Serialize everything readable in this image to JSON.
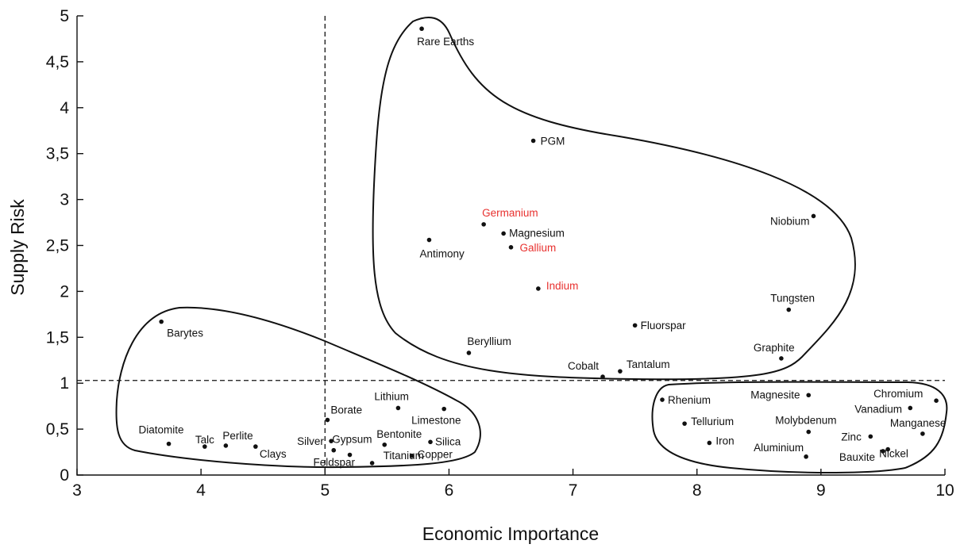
{
  "chart_data": {
    "type": "scatter",
    "title": "",
    "xlabel": "Economic Importance",
    "ylabel": "Supply Risk",
    "xlim": [
      3,
      10
    ],
    "ylim": [
      0,
      5
    ],
    "x_ticks": [
      3,
      4,
      5,
      6,
      7,
      8,
      9,
      10
    ],
    "x_tick_labels": [
      "3",
      "4",
      "5",
      "6",
      "7",
      "8",
      "9",
      "10"
    ],
    "y_ticks": [
      0,
      0.5,
      1,
      1.5,
      2,
      2.5,
      3,
      3.5,
      4,
      4.5,
      5
    ],
    "y_tick_labels": [
      "0",
      "0,5",
      "1",
      "1,5",
      "2",
      "2,5",
      "3",
      "3,5",
      "4",
      "4,5",
      "5"
    ],
    "grid": false,
    "reference_lines": [
      {
        "orientation": "vertical",
        "x": 5,
        "style": "dashed"
      },
      {
        "orientation": "horizontal",
        "y": 1.03,
        "style": "dashed"
      }
    ],
    "colors": {
      "default_label": "#111111",
      "highlight_label": "#e8312f"
    },
    "points": [
      {
        "name": "Rare Earths",
        "x": 5.78,
        "y": 4.86,
        "highlight": false
      },
      {
        "name": "PGM",
        "x": 6.68,
        "y": 3.64,
        "highlight": false
      },
      {
        "name": "Germanium",
        "x": 6.28,
        "y": 2.73,
        "highlight": true
      },
      {
        "name": "Magnesium",
        "x": 6.44,
        "y": 2.63,
        "highlight": false
      },
      {
        "name": "Antimony",
        "x": 5.84,
        "y": 2.56,
        "highlight": false
      },
      {
        "name": "Gallium",
        "x": 6.5,
        "y": 2.48,
        "highlight": true
      },
      {
        "name": "Indium",
        "x": 6.72,
        "y": 2.03,
        "highlight": true
      },
      {
        "name": "Niobium",
        "x": 8.94,
        "y": 2.82,
        "highlight": false
      },
      {
        "name": "Tungsten",
        "x": 8.74,
        "y": 1.8,
        "highlight": false
      },
      {
        "name": "Fluorspar",
        "x": 7.5,
        "y": 1.63,
        "highlight": false
      },
      {
        "name": "Beryllium",
        "x": 6.16,
        "y": 1.33,
        "highlight": false
      },
      {
        "name": "Graphite",
        "x": 8.68,
        "y": 1.27,
        "highlight": false
      },
      {
        "name": "Cobalt",
        "x": 7.24,
        "y": 1.07,
        "highlight": false
      },
      {
        "name": "Tantalum",
        "x": 7.38,
        "y": 1.13,
        "highlight": false
      },
      {
        "name": "Barytes",
        "x": 3.68,
        "y": 1.67,
        "highlight": false
      },
      {
        "name": "Diatomite",
        "x": 3.74,
        "y": 0.34,
        "highlight": false
      },
      {
        "name": "Talc",
        "x": 4.03,
        "y": 0.31,
        "highlight": false
      },
      {
        "name": "Perlite",
        "x": 4.2,
        "y": 0.32,
        "highlight": false
      },
      {
        "name": "Clays",
        "x": 4.44,
        "y": 0.31,
        "highlight": false
      },
      {
        "name": "Borate",
        "x": 5.02,
        "y": 0.6,
        "highlight": false
      },
      {
        "name": "Silver",
        "x": 5.05,
        "y": 0.37,
        "highlight": false
      },
      {
        "name": "Gypsum",
        "x": 5.07,
        "y": 0.27,
        "highlight": false
      },
      {
        "name": "Feldspar",
        "x": 5.2,
        "y": 0.22,
        "highlight": false
      },
      {
        "name": "Titanium",
        "x": 5.38,
        "y": 0.13,
        "highlight": false
      },
      {
        "name": "Lithium",
        "x": 5.59,
        "y": 0.73,
        "highlight": false
      },
      {
        "name": "Bentonite",
        "x": 5.48,
        "y": 0.33,
        "highlight": false
      },
      {
        "name": "Limestone",
        "x": 5.96,
        "y": 0.72,
        "highlight": false
      },
      {
        "name": "Silica",
        "x": 5.85,
        "y": 0.36,
        "highlight": false
      },
      {
        "name": "Copper",
        "x": 5.7,
        "y": 0.21,
        "highlight": false
      },
      {
        "name": "Rhenium",
        "x": 7.72,
        "y": 0.82,
        "highlight": false
      },
      {
        "name": "Tellurium",
        "x": 7.9,
        "y": 0.56,
        "highlight": false
      },
      {
        "name": "Iron",
        "x": 8.1,
        "y": 0.35,
        "highlight": false
      },
      {
        "name": "Magnesite",
        "x": 8.9,
        "y": 0.87,
        "highlight": false
      },
      {
        "name": "Molybdenum",
        "x": 8.9,
        "y": 0.47,
        "highlight": false
      },
      {
        "name": "Aluminium",
        "x": 8.88,
        "y": 0.2,
        "highlight": false
      },
      {
        "name": "Chromium",
        "x": 9.93,
        "y": 0.81,
        "highlight": false
      },
      {
        "name": "Vanadium",
        "x": 9.72,
        "y": 0.73,
        "highlight": false
      },
      {
        "name": "Manganese",
        "x": 9.82,
        "y": 0.45,
        "highlight": false
      },
      {
        "name": "Zinc",
        "x": 9.4,
        "y": 0.42,
        "highlight": false
      },
      {
        "name": "Nickel",
        "x": 9.54,
        "y": 0.28,
        "highlight": false
      },
      {
        "name": "Bauxite",
        "x": 9.5,
        "y": 0.26,
        "highlight": false
      }
    ]
  }
}
